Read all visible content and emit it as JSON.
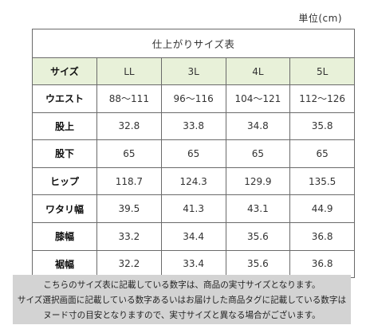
{
  "unit_label": "単位(cm)",
  "table": {
    "title": "仕上がりサイズ表",
    "header_label": "サイズ",
    "sizes": [
      "LL",
      "3L",
      "4L",
      "5L"
    ],
    "rows": [
      {
        "label": "ウエスト",
        "values": [
          "88～111",
          "96～116",
          "104～121",
          "112～126"
        ]
      },
      {
        "label": "股上",
        "values": [
          "32.8",
          "33.8",
          "34.8",
          "35.8"
        ]
      },
      {
        "label": "股下",
        "values": [
          "65",
          "65",
          "65",
          "65"
        ]
      },
      {
        "label": "ヒップ",
        "values": [
          "118.7",
          "124.3",
          "129.9",
          "135.5"
        ]
      },
      {
        "label": "ワタリ幅",
        "values": [
          "39.5",
          "41.3",
          "43.1",
          "44.9"
        ]
      },
      {
        "label": "膝幅",
        "values": [
          "33.2",
          "34.4",
          "35.6",
          "36.8"
        ]
      },
      {
        "label": "裾幅",
        "values": [
          "32.2",
          "33.4",
          "35.6",
          "36.8"
        ]
      }
    ]
  },
  "note": {
    "lines": [
      "こちらのサイズ表に記載している数字は、商品の実寸サイズとなります。",
      "サイズ選択画面に記載している数字あるいはお届けした商品タグに記載している数字は",
      "ヌード寸の目安となりますので、実寸サイズと異なる場合がございます。"
    ]
  },
  "colors": {
    "header_background": "#e8f1d9",
    "note_background": "#d3d3d3",
    "border": "#6a6a6a"
  }
}
